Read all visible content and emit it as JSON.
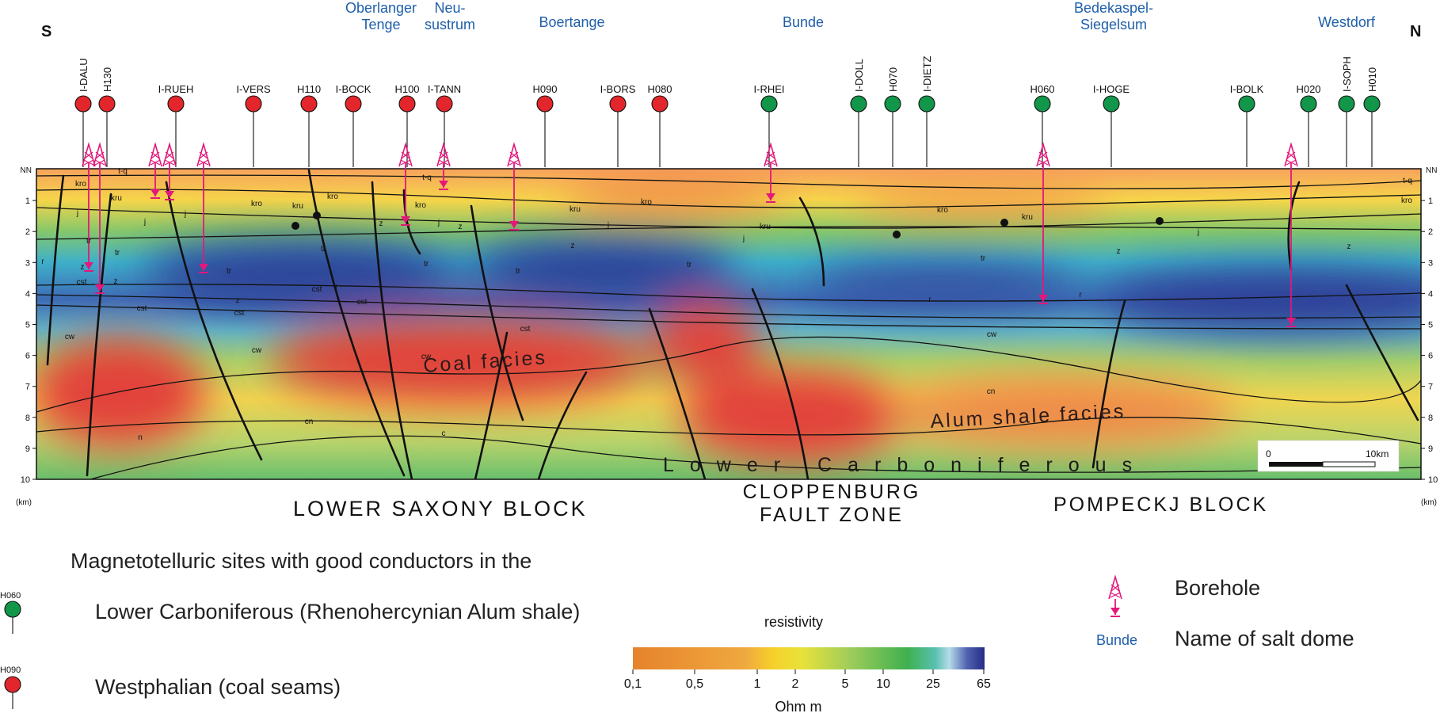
{
  "orientation": {
    "south": "S",
    "north": "N"
  },
  "salt_domes": [
    {
      "lines": [
        "Oberlanger",
        "Tenge"
      ]
    },
    {
      "lines": [
        "Neu-",
        "sustrum"
      ]
    },
    {
      "lines": [
        "Boertange"
      ]
    },
    {
      "lines": [
        "Bunde"
      ]
    },
    {
      "lines": [
        "Bedekaspel-",
        "Siegelsum"
      ]
    },
    {
      "lines": [
        "Westdorf"
      ]
    }
  ],
  "sites": [
    {
      "label": "I-DALU",
      "type": "westphalian"
    },
    {
      "label": "H130",
      "type": "westphalian"
    },
    {
      "label": "I-RUEH",
      "type": "westphalian"
    },
    {
      "label": "I-VERS",
      "type": "westphalian"
    },
    {
      "label": "H110",
      "type": "westphalian"
    },
    {
      "label": "I-BOCK",
      "type": "westphalian"
    },
    {
      "label": "H100",
      "type": "westphalian"
    },
    {
      "label": "I-TANN",
      "type": "westphalian"
    },
    {
      "label": "H090",
      "type": "westphalian"
    },
    {
      "label": "I-BORS",
      "type": "westphalian"
    },
    {
      "label": "H080",
      "type": "westphalian"
    },
    {
      "label": "I-RHEI",
      "type": "lower_carboniferous"
    },
    {
      "label": "I-DOLL",
      "type": "lower_carboniferous"
    },
    {
      "label": "H070",
      "type": "lower_carboniferous"
    },
    {
      "label": "I-DIETZ",
      "type": "lower_carboniferous"
    },
    {
      "label": "H060",
      "type": "lower_carboniferous"
    },
    {
      "label": "I-HOGE",
      "type": "lower_carboniferous"
    },
    {
      "label": "I-BOLK",
      "type": "lower_carboniferous"
    },
    {
      "label": "H020",
      "type": "lower_carboniferous"
    },
    {
      "label": "I-SOPH",
      "type": "lower_carboniferous"
    },
    {
      "label": "H010",
      "type": "lower_carboniferous"
    }
  ],
  "depth_axis": {
    "top_label": "NN",
    "ticks": [
      "1",
      "2",
      "3",
      "4",
      "5",
      "6",
      "7",
      "8",
      "9",
      "10"
    ],
    "unit": "(km)"
  },
  "facies_labels": {
    "coal": "Coal facies",
    "alum": "Alum shale facies",
    "lower_carb": "Lower Carboniferous"
  },
  "units": [
    "t-q",
    "kro",
    "kru",
    "j",
    "tr",
    "z",
    "cst",
    "r",
    "cw",
    "cn",
    "n",
    "c"
  ],
  "blocks": {
    "lower_saxony": "LOWER SAXONY BLOCK",
    "cloppenburg": [
      "CLOPPENBURG",
      "FAULT ZONE"
    ],
    "pompeckj": "POMPECKJ BLOCK"
  },
  "scale_bar": {
    "start": "0",
    "end": "10km"
  },
  "legend": {
    "heading": "Magnetotelluric sites with good conductors in the",
    "lower_carb_text": "Lower Carboniferous (Rhenohercynian Alum shale)",
    "lower_carb_site": "H060",
    "westphalian_text": "Westphalian (coal seams)",
    "westphalian_site": "H090",
    "borehole_text": "Borehole",
    "salt_dome_example": "Bunde",
    "salt_dome_text": "Name of salt dome"
  },
  "colorbar": {
    "title": "resistivity",
    "ticks": [
      "0,1",
      "0,5",
      "1",
      "2",
      "5",
      "10",
      "25",
      "65"
    ],
    "unit": "Ohm m"
  },
  "colors": {
    "westphalian": "#e3262b",
    "lower_carboniferous": "#11964a",
    "borehole": "#e2187b",
    "salt_dome_text": "#1f5fa8",
    "conductive": "#e2423a",
    "resistive": "#2f3f97"
  }
}
